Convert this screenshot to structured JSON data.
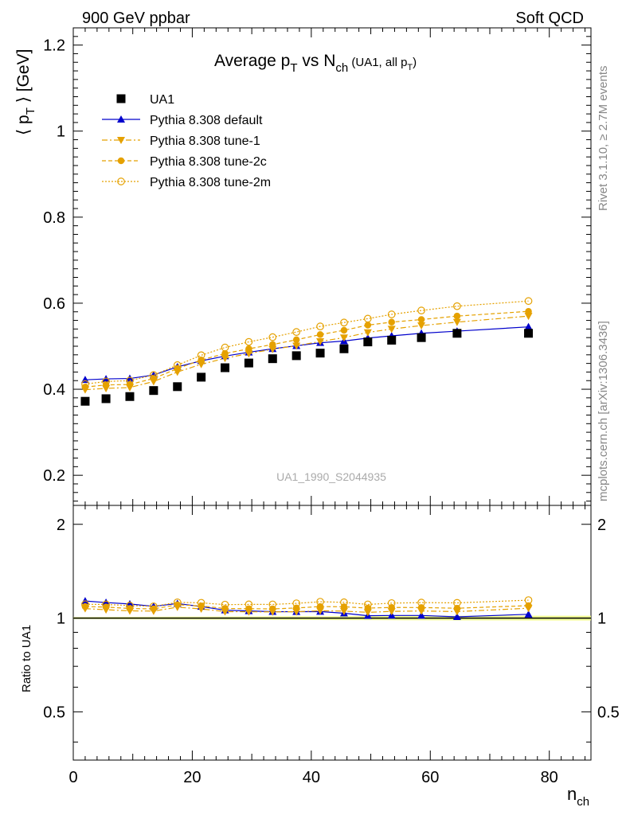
{
  "header": {
    "left": "900 GeV ppbar",
    "right": "Soft QCD"
  },
  "side_labels": {
    "rivet": "Rivet 3.1.10, ≥ 2.7M events",
    "mcplots": "mcplots.cern.ch [arXiv:1306.3436]"
  },
  "chart_data": {
    "type": "line",
    "title": "Average pT vs Nch (UA1, all pT)",
    "watermark": "UA1_1990_S2044935",
    "xlabel": "nch",
    "ylabel": "⟨ pT ⟩ [GeV]",
    "ratio_ylabel": "Ratio to UA1",
    "xlim": [
      0,
      87
    ],
    "ylim": [
      0.13,
      1.24
    ],
    "ratio_ylim": [
      0.35,
      2.3
    ],
    "x_ticks": [
      0,
      20,
      40,
      60,
      80
    ],
    "y_ticks": [
      0.2,
      0.4,
      0.6,
      0.8,
      1,
      1.2
    ],
    "y_tick_labels": [
      "0.2",
      "0.4",
      "0.6",
      "0.8",
      "1",
      "1.2"
    ],
    "ratio_ticks": [
      0.5,
      1,
      2
    ],
    "ratio_tick_labels": [
      "0.5",
      "1",
      "2"
    ],
    "x": [
      2,
      5.5,
      9.5,
      13.5,
      17.5,
      21.5,
      25.5,
      29.5,
      33.5,
      37.5,
      41.5,
      45.5,
      49.5,
      53.5,
      58.5,
      64.5,
      76.5
    ],
    "series": [
      {
        "name": "UA1",
        "kind": "data",
        "color": "#000000",
        "values": [
          0.372,
          0.378,
          0.383,
          0.397,
          0.406,
          0.428,
          0.45,
          0.461,
          0.471,
          0.478,
          0.484,
          0.494,
          0.51,
          0.514,
          0.52,
          0.53,
          0.53
        ]
      },
      {
        "name": "Pythia 8.308 default",
        "kind": "mc",
        "color": "#0000cc",
        "marker": "triangle-up",
        "dash": "",
        "values": [
          0.422,
          0.424,
          0.425,
          0.433,
          0.452,
          0.466,
          0.477,
          0.486,
          0.494,
          0.501,
          0.508,
          0.512,
          0.519,
          0.524,
          0.53,
          0.535,
          0.545
        ]
      },
      {
        "name": "Pythia 8.308 tune-1",
        "kind": "mc",
        "color": "#e5a100",
        "marker": "triangle-down",
        "dash": "7 3 2 3",
        "values": [
          0.399,
          0.402,
          0.404,
          0.418,
          0.44,
          0.458,
          0.472,
          0.483,
          0.493,
          0.501,
          0.511,
          0.52,
          0.532,
          0.54,
          0.548,
          0.556,
          0.57
        ]
      },
      {
        "name": "Pythia 8.308 tune-2c",
        "kind": "mc",
        "color": "#e5a100",
        "marker": "circle",
        "dash": "5 3",
        "values": [
          0.405,
          0.41,
          0.411,
          0.425,
          0.448,
          0.468,
          0.483,
          0.494,
          0.504,
          0.515,
          0.527,
          0.537,
          0.549,
          0.556,
          0.562,
          0.57,
          0.581
        ]
      },
      {
        "name": "Pythia 8.308 tune-2m",
        "kind": "mc",
        "color": "#e5a100",
        "marker": "circle-open",
        "dash": "2 2",
        "values": [
          0.412,
          0.418,
          0.42,
          0.433,
          0.456,
          0.479,
          0.497,
          0.51,
          0.521,
          0.533,
          0.546,
          0.555,
          0.564,
          0.574,
          0.583,
          0.593,
          0.605
        ]
      }
    ]
  }
}
